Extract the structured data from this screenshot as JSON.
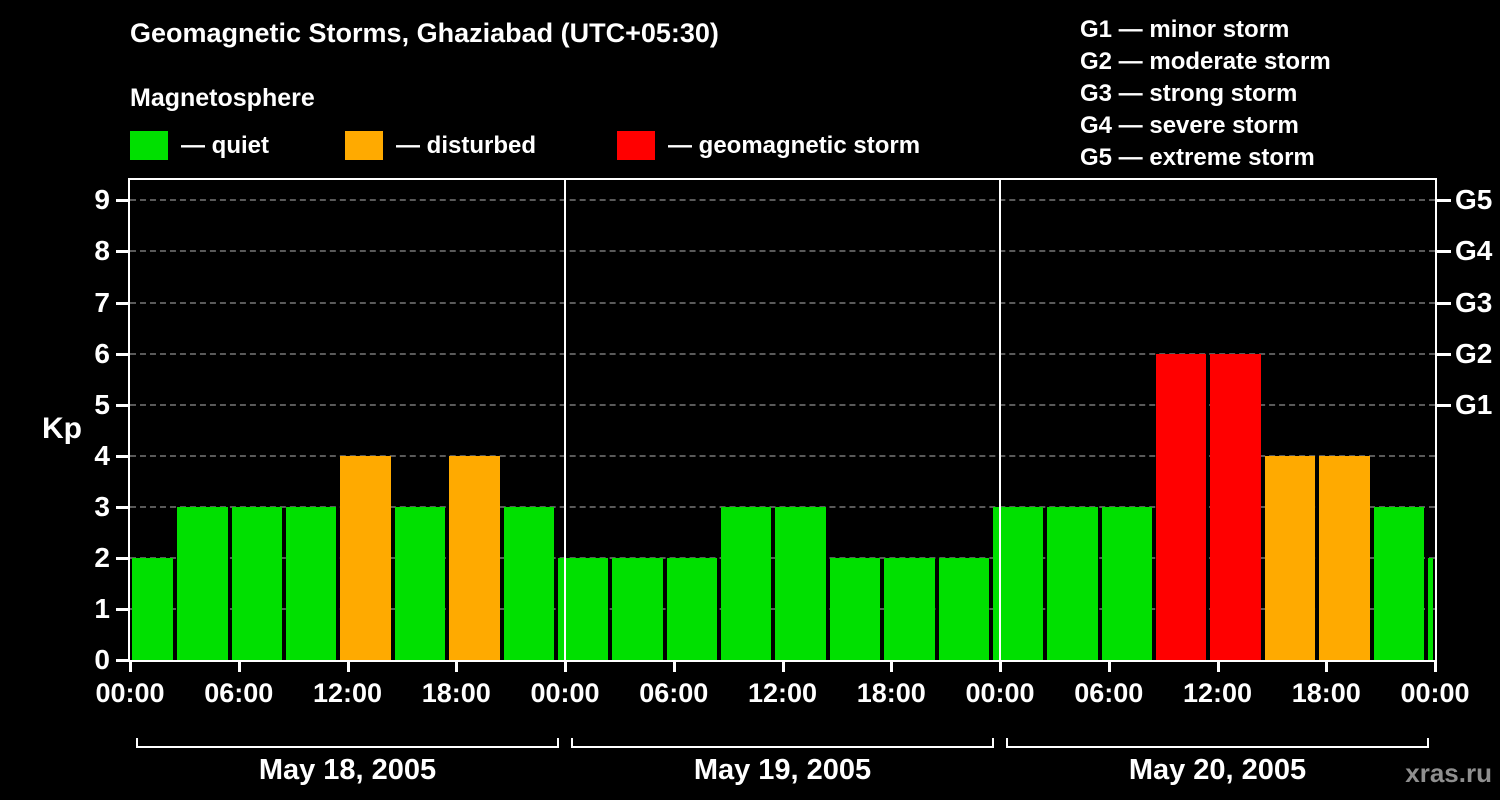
{
  "title": "Geomagnetic Storms, Ghaziabad (UTC+05:30)",
  "subtitle": "Magnetosphere",
  "legend": {
    "items": [
      {
        "label": "— quiet",
        "status": "quiet",
        "color": "#00e000"
      },
      {
        "label": "— disturbed",
        "status": "disturbed",
        "color": "#ffaa00"
      },
      {
        "label": "— geomagnetic storm",
        "status": "storm",
        "color": "#ff0000"
      }
    ]
  },
  "storm_scale": [
    {
      "label": "G1 — minor storm"
    },
    {
      "label": "G2 — moderate storm"
    },
    {
      "label": "G3 — strong storm"
    },
    {
      "label": "G4 — severe storm"
    },
    {
      "label": "G5 — extreme storm"
    }
  ],
  "watermark": "xras.ru",
  "chart_data": {
    "type": "bar",
    "title": "Geomagnetic Storms, Ghaziabad (UTC+05:30)",
    "ylabel": "Kp",
    "xlabel": "",
    "ylim": [
      0,
      9.4
    ],
    "yticks": [
      0,
      1,
      2,
      3,
      4,
      5,
      6,
      7,
      8,
      9
    ],
    "grid": "horizontal-dashed",
    "right_axis": [
      {
        "label": "G1",
        "kp": 5
      },
      {
        "label": "G2",
        "kp": 6
      },
      {
        "label": "G3",
        "kp": 7
      },
      {
        "label": "G4",
        "kp": 8
      },
      {
        "label": "G5",
        "kp": 9
      }
    ],
    "x_hours_span": 72,
    "xticks": [
      {
        "hour": 0,
        "label": "00:00"
      },
      {
        "hour": 6,
        "label": "06:00"
      },
      {
        "hour": 12,
        "label": "12:00"
      },
      {
        "hour": 18,
        "label": "18:00"
      },
      {
        "hour": 24,
        "label": "00:00"
      },
      {
        "hour": 30,
        "label": "06:00"
      },
      {
        "hour": 36,
        "label": "12:00"
      },
      {
        "hour": 42,
        "label": "18:00"
      },
      {
        "hour": 48,
        "label": "00:00"
      },
      {
        "hour": 54,
        "label": "06:00"
      },
      {
        "hour": 60,
        "label": "12:00"
      },
      {
        "hour": 66,
        "label": "18:00"
      },
      {
        "hour": 72,
        "label": "00:00"
      }
    ],
    "day_separators_hours": [
      24,
      48
    ],
    "days": [
      {
        "label": "May 18, 2005",
        "start_hour": 0,
        "end_hour": 24
      },
      {
        "label": "May 19, 2005",
        "start_hour": 24,
        "end_hour": 48
      },
      {
        "label": "May 20, 2005",
        "start_hour": 48,
        "end_hour": 72
      }
    ],
    "colors": {
      "quiet": "#00e000",
      "disturbed": "#ffaa00",
      "storm": "#ff0000"
    },
    "bars": [
      {
        "start_hour": 0,
        "end_hour": 2.5,
        "kp": 2,
        "status": "quiet"
      },
      {
        "start_hour": 2.5,
        "end_hour": 5.5,
        "kp": 3,
        "status": "quiet"
      },
      {
        "start_hour": 5.5,
        "end_hour": 8.5,
        "kp": 3,
        "status": "quiet"
      },
      {
        "start_hour": 8.5,
        "end_hour": 11.5,
        "kp": 3,
        "status": "quiet"
      },
      {
        "start_hour": 11.5,
        "end_hour": 14.5,
        "kp": 4,
        "status": "disturbed"
      },
      {
        "start_hour": 14.5,
        "end_hour": 17.5,
        "kp": 3,
        "status": "quiet"
      },
      {
        "start_hour": 17.5,
        "end_hour": 20.5,
        "kp": 4,
        "status": "disturbed"
      },
      {
        "start_hour": 20.5,
        "end_hour": 23.5,
        "kp": 3,
        "status": "quiet"
      },
      {
        "start_hour": 23.5,
        "end_hour": 26.5,
        "kp": 2,
        "status": "quiet"
      },
      {
        "start_hour": 26.5,
        "end_hour": 29.5,
        "kp": 2,
        "status": "quiet"
      },
      {
        "start_hour": 29.5,
        "end_hour": 32.5,
        "kp": 2,
        "status": "quiet"
      },
      {
        "start_hour": 32.5,
        "end_hour": 35.5,
        "kp": 3,
        "status": "quiet"
      },
      {
        "start_hour": 35.5,
        "end_hour": 38.5,
        "kp": 3,
        "status": "quiet"
      },
      {
        "start_hour": 38.5,
        "end_hour": 41.5,
        "kp": 2,
        "status": "quiet"
      },
      {
        "start_hour": 41.5,
        "end_hour": 44.5,
        "kp": 2,
        "status": "quiet"
      },
      {
        "start_hour": 44.5,
        "end_hour": 47.5,
        "kp": 2,
        "status": "quiet"
      },
      {
        "start_hour": 47.5,
        "end_hour": 50.5,
        "kp": 3,
        "status": "quiet"
      },
      {
        "start_hour": 50.5,
        "end_hour": 53.5,
        "kp": 3,
        "status": "quiet"
      },
      {
        "start_hour": 53.5,
        "end_hour": 56.5,
        "kp": 3,
        "status": "quiet"
      },
      {
        "start_hour": 56.5,
        "end_hour": 59.5,
        "kp": 6,
        "status": "storm"
      },
      {
        "start_hour": 59.5,
        "end_hour": 62.5,
        "kp": 6,
        "status": "storm"
      },
      {
        "start_hour": 62.5,
        "end_hour": 65.5,
        "kp": 4,
        "status": "disturbed"
      },
      {
        "start_hour": 65.5,
        "end_hour": 68.5,
        "kp": 4,
        "status": "disturbed"
      },
      {
        "start_hour": 68.5,
        "end_hour": 71.5,
        "kp": 3,
        "status": "quiet"
      },
      {
        "start_hour": 71.5,
        "end_hour": 72,
        "kp": 2,
        "status": "quiet"
      }
    ]
  }
}
